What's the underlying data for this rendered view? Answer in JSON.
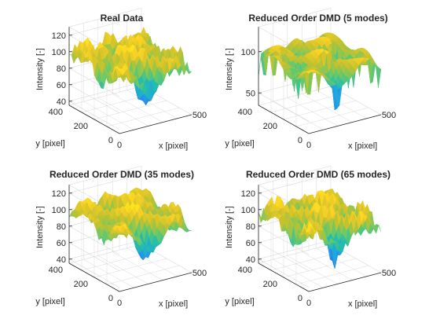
{
  "colormap": [
    "#3e26a8",
    "#4748f1",
    "#2b7cf6",
    "#1ea7df",
    "#25bea8",
    "#6cc966",
    "#c8c12b",
    "#fbd225",
    "#f9fb14"
  ],
  "axis_color": "#262626",
  "grid_color": "#d9d9d9",
  "chart_data": [
    {
      "type": "surface",
      "title": "Real Data",
      "xlabel": "x [pixel]",
      "ylabel": "y [pixel]",
      "zlabel": "Intensity [-]",
      "xlim": [
        0,
        500
      ],
      "ylim": [
        0,
        400
      ],
      "zlim": [
        35,
        130
      ],
      "xticks": [
        500
      ],
      "yticks": [
        0,
        200,
        400
      ],
      "zticks": [
        40,
        60,
        80,
        100,
        120
      ],
      "modes": null,
      "grid": true
    },
    {
      "type": "surface",
      "title": "Reduced Order DMD (5 modes)",
      "xlabel": "x [pixel]",
      "ylabel": "y [pixel]",
      "zlabel": "Intensity [-]",
      "xlim": [
        0,
        500
      ],
      "ylim": [
        0,
        400
      ],
      "zlim": [
        35,
        130
      ],
      "xticks": [
        500
      ],
      "yticks": [
        0,
        200,
        400
      ],
      "zticks": [
        50,
        100
      ],
      "modes": 5,
      "grid": true
    },
    {
      "type": "surface",
      "title": "Reduced Order DMD (35 modes)",
      "xlabel": "x [pixel]",
      "ylabel": "y [pixel]",
      "zlabel": "Intensity [-]",
      "xlim": [
        0,
        500
      ],
      "ylim": [
        0,
        400
      ],
      "zlim": [
        35,
        130
      ],
      "xticks": [
        500
      ],
      "yticks": [
        0,
        200,
        400
      ],
      "zticks": [
        40,
        60,
        80,
        100,
        120
      ],
      "modes": 35,
      "grid": true
    },
    {
      "type": "surface",
      "title": "Reduced Order DMD (65 modes)",
      "xlabel": "x [pixel]",
      "ylabel": "y [pixel]",
      "zlabel": "Intensity [-]",
      "xlim": [
        0,
        500
      ],
      "ylim": [
        0,
        400
      ],
      "zlim": [
        35,
        130
      ],
      "xticks": [
        500
      ],
      "yticks": [
        0,
        200,
        400
      ],
      "zticks": [
        40,
        60,
        80,
        100,
        120
      ],
      "modes": 65,
      "grid": true
    }
  ]
}
